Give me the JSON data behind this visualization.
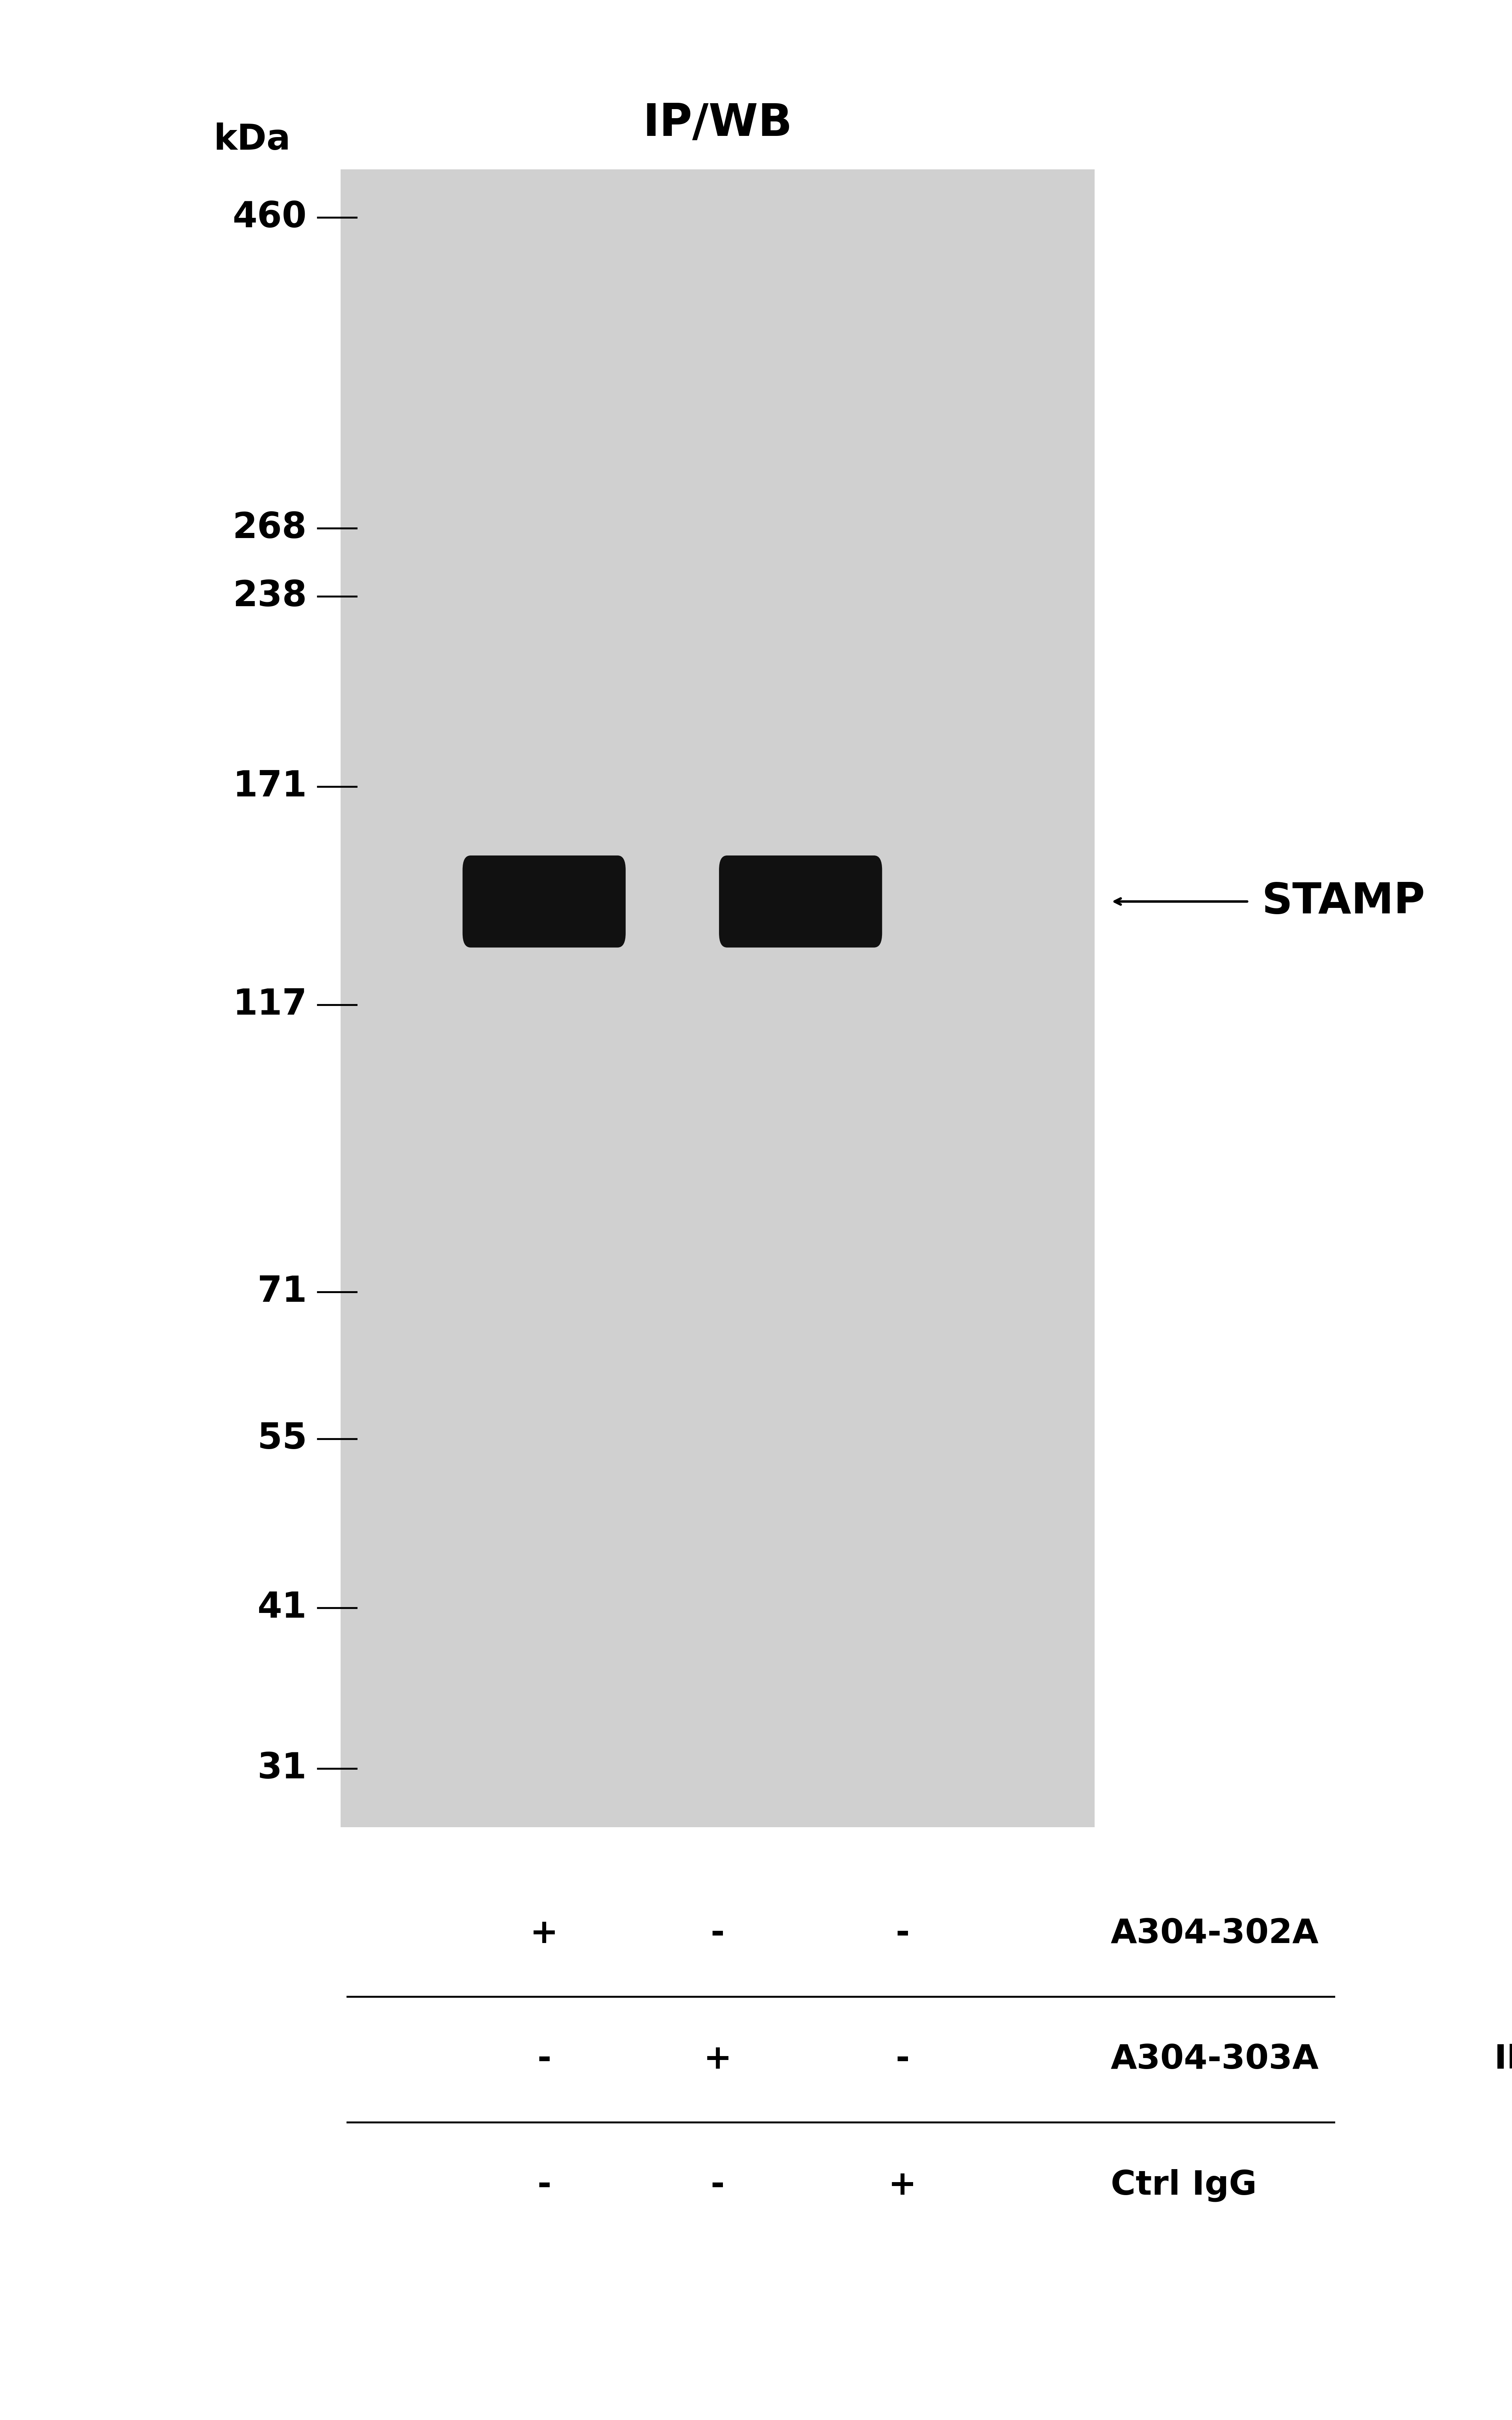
{
  "title": "IP/WB",
  "background_color": "#ffffff",
  "gel_bg_color": "#d0d0d0",
  "band_color": "#111111",
  "marker_labels": [
    "460",
    "268",
    "238",
    "171",
    "117",
    "71",
    "55",
    "41",
    "31"
  ],
  "marker_log_vals": [
    460,
    268,
    238,
    171,
    117,
    71,
    55,
    41,
    31
  ],
  "kda_label": "kDa",
  "stamp_label": "STAMP",
  "ip_label": "IP",
  "lane_labels": [
    "A304-302A",
    "A304-303A",
    "Ctrl IgG"
  ],
  "lane_plus_minus": [
    [
      "+",
      "-",
      "-"
    ],
    [
      "-",
      "+",
      "-"
    ],
    [
      "-",
      "-",
      "+"
    ]
  ]
}
